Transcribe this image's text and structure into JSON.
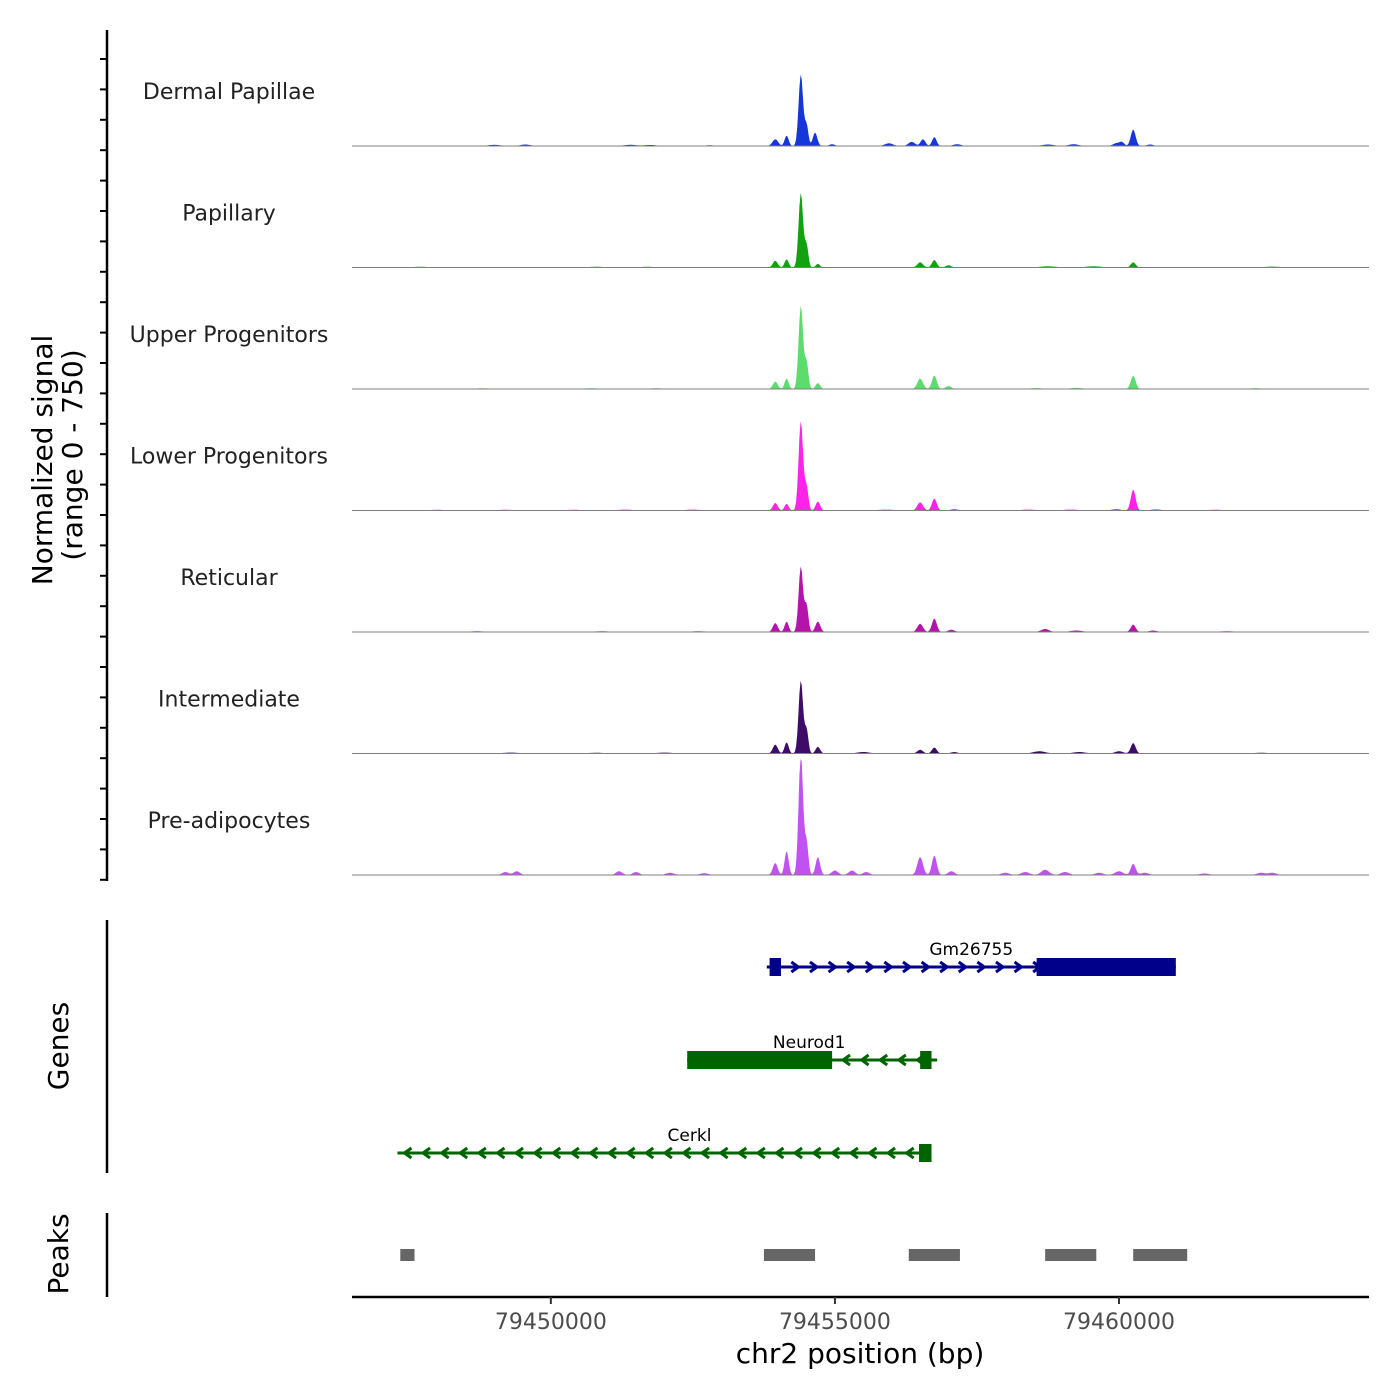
{
  "chart_data": {
    "type": "area",
    "title": "",
    "chromosome": "chr2",
    "xlabel": "chr2 position (bp)",
    "ylabel": "Normalized signal\n(range 0 - 750)",
    "ylabel_lines": [
      "Normalized signal",
      "(range 0 - 750)"
    ],
    "xlim": [
      79446500,
      79464400
    ],
    "ylim": [
      0,
      750
    ],
    "x_ticks": [
      79450000,
      79455000,
      79460000
    ],
    "x_tick_labels": [
      "79450000",
      "79455000",
      "79460000"
    ],
    "baseline_color": "#7f7f7f",
    "series": [
      {
        "name": "Dermal Papillae",
        "color": "#1536D8",
        "peaks": [
          [
            79449000,
            8,
            150
          ],
          [
            79449550,
            10,
            120
          ],
          [
            79451400,
            8,
            150
          ],
          [
            79451750,
            7,
            150
          ],
          [
            79452800,
            5,
            120
          ],
          [
            79453950,
            45,
            70
          ],
          [
            79454150,
            70,
            50
          ],
          [
            79454400,
            480,
            55
          ],
          [
            79454500,
            140,
            45
          ],
          [
            79454650,
            90,
            55
          ],
          [
            79454950,
            12,
            70
          ],
          [
            79455950,
            18,
            100
          ],
          [
            79456350,
            28,
            80
          ],
          [
            79456550,
            45,
            60
          ],
          [
            79456750,
            60,
            55
          ],
          [
            79457150,
            12,
            100
          ],
          [
            79458750,
            10,
            140
          ],
          [
            79459200,
            12,
            120
          ],
          [
            79459950,
            18,
            80
          ],
          [
            79460050,
            25,
            60
          ],
          [
            79460250,
            110,
            60
          ],
          [
            79460550,
            10,
            80
          ]
        ]
      },
      {
        "name": "Papillary",
        "color": "#11A111",
        "peaks": [
          [
            79447700,
            5,
            200
          ],
          [
            79450800,
            5,
            200
          ],
          [
            79451700,
            5,
            200
          ],
          [
            79453950,
            45,
            60
          ],
          [
            79454150,
            55,
            50
          ],
          [
            79454400,
            500,
            55
          ],
          [
            79454500,
            150,
            45
          ],
          [
            79454700,
            25,
            50
          ],
          [
            79456500,
            35,
            70
          ],
          [
            79456750,
            50,
            60
          ],
          [
            79457000,
            15,
            70
          ],
          [
            79458750,
            8,
            200
          ],
          [
            79459550,
            8,
            200
          ],
          [
            79460250,
            35,
            60
          ],
          [
            79462700,
            6,
            200
          ]
        ]
      },
      {
        "name": "Upper Progenitors",
        "color": "#5DDC6E",
        "peaks": [
          [
            79448800,
            5,
            200
          ],
          [
            79450700,
            5,
            200
          ],
          [
            79451850,
            5,
            200
          ],
          [
            79453950,
            50,
            60
          ],
          [
            79454150,
            70,
            50
          ],
          [
            79454400,
            560,
            55
          ],
          [
            79454500,
            180,
            45
          ],
          [
            79454700,
            40,
            55
          ],
          [
            79456500,
            70,
            70
          ],
          [
            79456750,
            90,
            60
          ],
          [
            79457000,
            20,
            70
          ],
          [
            79458550,
            6,
            150
          ],
          [
            79459250,
            8,
            150
          ],
          [
            79460250,
            90,
            60
          ],
          [
            79462400,
            5,
            200
          ]
        ]
      },
      {
        "name": "Lower Progenitors",
        "color": "#FF22E8",
        "peaks": [
          [
            79448000,
            5,
            200
          ],
          [
            79449200,
            5,
            200
          ],
          [
            79450400,
            5,
            200
          ],
          [
            79451300,
            6,
            200
          ],
          [
            79452500,
            6,
            200
          ],
          [
            79453950,
            50,
            60
          ],
          [
            79454150,
            45,
            50
          ],
          [
            79454400,
            600,
            55
          ],
          [
            79454500,
            160,
            45
          ],
          [
            79454700,
            60,
            55
          ],
          [
            79455900,
            6,
            200
          ],
          [
            79456500,
            55,
            70
          ],
          [
            79456750,
            80,
            60
          ],
          [
            79457100,
            10,
            80
          ],
          [
            79458400,
            6,
            200
          ],
          [
            79459150,
            6,
            200
          ],
          [
            79459950,
            10,
            100
          ],
          [
            79460250,
            140,
            60
          ],
          [
            79460650,
            8,
            120
          ],
          [
            79461700,
            5,
            200
          ]
        ]
      },
      {
        "name": "Reticular",
        "color": "#B414AB",
        "peaks": [
          [
            79448700,
            5,
            200
          ],
          [
            79450900,
            5,
            200
          ],
          [
            79452600,
            5,
            200
          ],
          [
            79453950,
            60,
            60
          ],
          [
            79454150,
            70,
            50
          ],
          [
            79454400,
            440,
            55
          ],
          [
            79454500,
            180,
            45
          ],
          [
            79454700,
            70,
            60
          ],
          [
            79456500,
            55,
            70
          ],
          [
            79456750,
            90,
            60
          ],
          [
            79457050,
            15,
            80
          ],
          [
            79458700,
            20,
            100
          ],
          [
            79459250,
            10,
            150
          ],
          [
            79460250,
            50,
            60
          ],
          [
            79460600,
            10,
            100
          ],
          [
            79461900,
            5,
            200
          ]
        ]
      },
      {
        "name": "Intermediate",
        "color": "#3E0C66",
        "peaks": [
          [
            79449300,
            6,
            200
          ],
          [
            79450800,
            5,
            200
          ],
          [
            79452000,
            6,
            200
          ],
          [
            79453950,
            60,
            60
          ],
          [
            79454150,
            75,
            50
          ],
          [
            79454400,
            490,
            55
          ],
          [
            79454500,
            160,
            45
          ],
          [
            79454700,
            45,
            55
          ],
          [
            79455500,
            10,
            150
          ],
          [
            79456500,
            25,
            70
          ],
          [
            79456750,
            40,
            60
          ],
          [
            79457100,
            10,
            80
          ],
          [
            79458600,
            15,
            150
          ],
          [
            79459300,
            10,
            150
          ],
          [
            79460000,
            15,
            100
          ],
          [
            79460250,
            70,
            60
          ],
          [
            79462500,
            5,
            200
          ]
        ]
      },
      {
        "name": "Pre-adipocytes",
        "color": "#C052F2",
        "peaks": [
          [
            79449200,
            20,
            80
          ],
          [
            79449400,
            25,
            80
          ],
          [
            79451200,
            25,
            80
          ],
          [
            79451500,
            20,
            80
          ],
          [
            79452100,
            15,
            100
          ],
          [
            79452700,
            12,
            100
          ],
          [
            79453950,
            80,
            60
          ],
          [
            79454150,
            160,
            50
          ],
          [
            79454400,
            820,
            55
          ],
          [
            79454500,
            220,
            45
          ],
          [
            79454700,
            120,
            55
          ],
          [
            79455000,
            30,
            80
          ],
          [
            79455300,
            30,
            80
          ],
          [
            79455550,
            20,
            80
          ],
          [
            79456500,
            120,
            70
          ],
          [
            79456750,
            130,
            60
          ],
          [
            79457050,
            25,
            80
          ],
          [
            79458000,
            15,
            100
          ],
          [
            79458350,
            20,
            100
          ],
          [
            79458700,
            35,
            100
          ],
          [
            79459050,
            20,
            100
          ],
          [
            79459650,
            15,
            100
          ],
          [
            79460000,
            25,
            100
          ],
          [
            79460250,
            75,
            60
          ],
          [
            79460450,
            15,
            100
          ],
          [
            79461500,
            10,
            120
          ],
          [
            79462500,
            15,
            100
          ],
          [
            79462700,
            15,
            100
          ]
        ]
      }
    ],
    "genes": [
      {
        "name": "Gm26755",
        "strand": "+",
        "color": "#00008B",
        "start": 79453800,
        "end": 79461000,
        "exons": [
          [
            79453850,
            79454050
          ],
          [
            79458550,
            79461000
          ]
        ],
        "row": 0
      },
      {
        "name": "Neurod1",
        "strand": "-",
        "color": "#006400",
        "start": 79452400,
        "end": 79456800,
        "exons": [
          [
            79452400,
            79454950
          ],
          [
            79456500,
            79456700
          ]
        ],
        "row": 1
      },
      {
        "name": "Cerkl",
        "strand": "-",
        "color": "#006400",
        "start": 79447300,
        "end": 79456700,
        "exons": [
          [
            79456480,
            79456700
          ]
        ],
        "row": 2
      }
    ],
    "peaks": {
      "color": "#666666",
      "ranges": [
        [
          79447350,
          79447600
        ],
        [
          79453750,
          79454650
        ],
        [
          79456300,
          79457200
        ],
        [
          79458700,
          79459600
        ],
        [
          79460250,
          79461200
        ]
      ]
    },
    "track_labels": {
      "genes": "Genes",
      "peaks": "Peaks"
    }
  }
}
